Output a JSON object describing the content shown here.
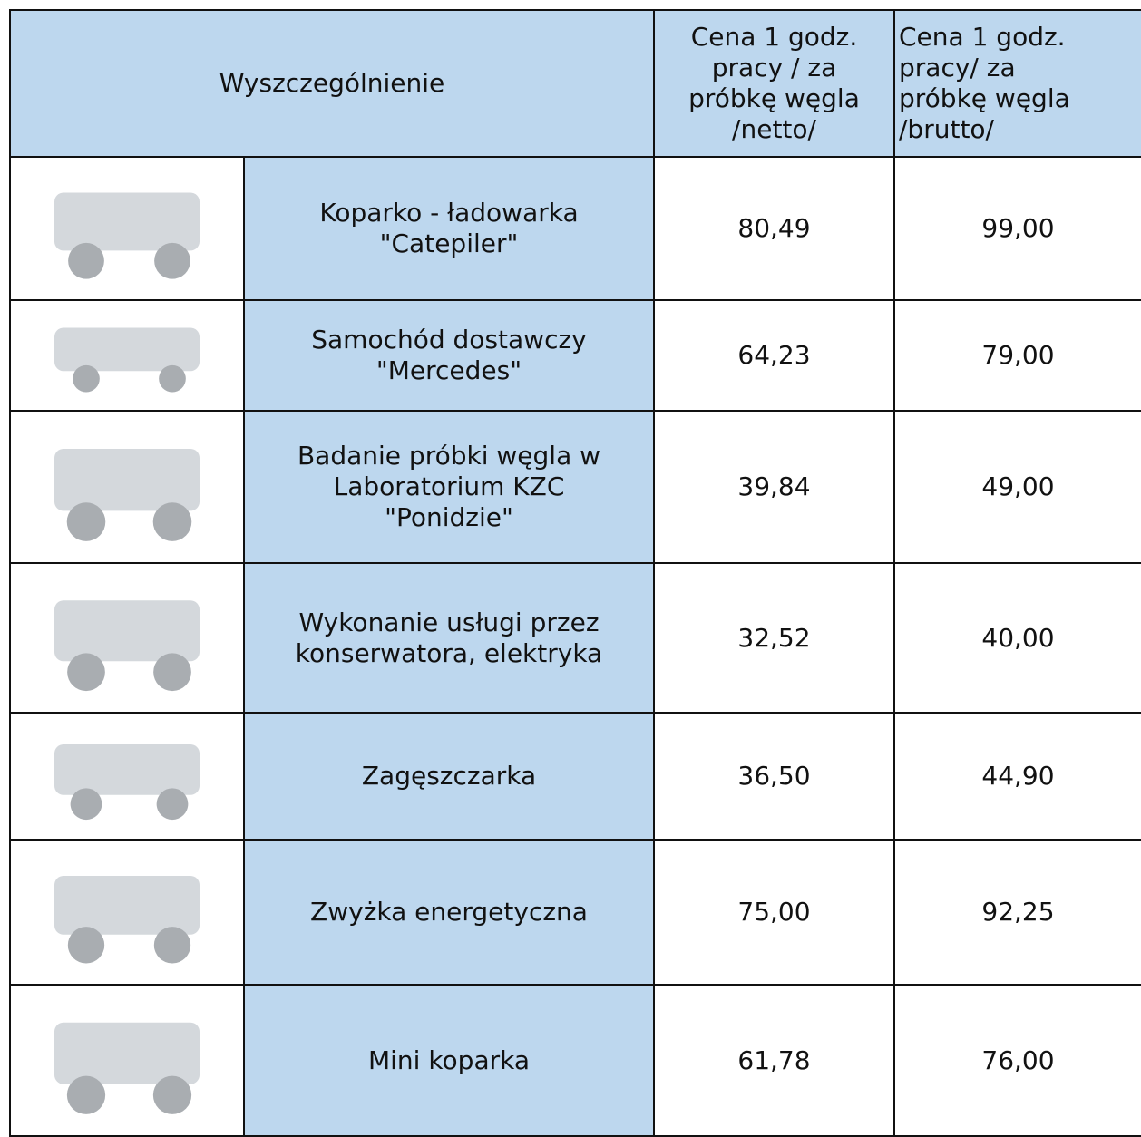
{
  "table": {
    "header": {
      "description": "Wyszczególnienie",
      "netto": [
        "Cena 1 godz.",
        "pracy / za",
        "próbkę węgla",
        "/netto/"
      ],
      "brutto": [
        "Cena 1 godz.",
        "pracy/ za",
        "próbkę węgla",
        "/brutto/"
      ]
    },
    "rows": [
      {
        "name": [
          "Koparko - ładowarka",
          "\"Catepiler\""
        ],
        "netto": "80,49",
        "brutto": "99,00"
      },
      {
        "name": [
          "Samochód dostawczy",
          "\"Mercedes\""
        ],
        "netto": "64,23",
        "brutto": "79,00"
      },
      {
        "name": [
          "Badanie próbki węgla w",
          "Laboratorium KZC",
          "\"Ponidzie\""
        ],
        "netto": "39,84",
        "brutto": "49,00"
      },
      {
        "name": [
          "Wykonanie usługi przez",
          "konserwatora, elektryka"
        ],
        "netto": "32,52",
        "brutto": "40,00"
      },
      {
        "name": [
          "Zagęszczarka"
        ],
        "netto": "36,50",
        "brutto": "44,90"
      },
      {
        "name": [
          "Zwyżka energetyczna"
        ],
        "netto": "75,00",
        "brutto": "92,25"
      },
      {
        "name": [
          "Mini koparka"
        ],
        "netto": "61,78",
        "brutto": "76,00"
      }
    ]
  }
}
